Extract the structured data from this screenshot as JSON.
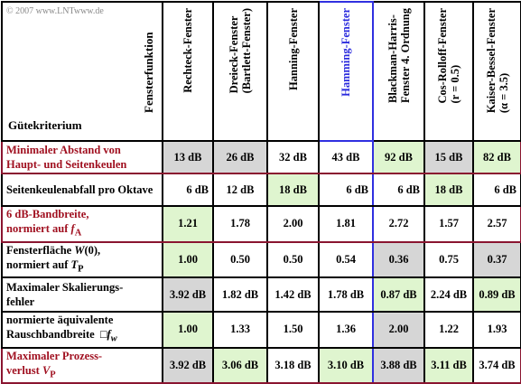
{
  "copyright": "© 2007 www.LNTwww.de",
  "row_axis_label": "Gütekriterium",
  "col_axis_label": "Fensterfunktion",
  "windows": [
    {
      "name": "Rechteck-Fenster"
    },
    {
      "name": "Dreieck-Fenster\n(Bartlett-Fenster)"
    },
    {
      "name": "Hanning-Fenster"
    },
    {
      "name": "Hamming-Fenster"
    },
    {
      "name": "Blackman-Harris-\nFenster 4. Ordnung"
    },
    {
      "name": "Cos-Rolloff-Fenster\n(r = 0.5)"
    },
    {
      "name": "Kaiser-Bessel-Fenster\n(α = 3.5)"
    }
  ],
  "rows": [
    {
      "label": "Minimaler Abstand von Haupt- und Seitenkeulen",
      "values": [
        "13 dB",
        "26 dB",
        "32 dB",
        "43 dB",
        "92 dB",
        "15 dB",
        "82 dB"
      ]
    },
    {
      "label": "Seitenkeulenabfall pro Oktave",
      "values": [
        "6 dB",
        "12 dB",
        "18 dB",
        "6 dB",
        "6 dB",
        "18 dB",
        "6 dB"
      ]
    },
    {
      "label": "6 dB-Bandbreite, normiert auf fA",
      "values": [
        "1.21",
        "1.78",
        "2.00",
        "1.81",
        "2.72",
        "1.57",
        "2.57"
      ]
    },
    {
      "label": "Fensterfläche W(0), normiert auf TP",
      "values": [
        "1.00",
        "0.50",
        "0.50",
        "0.54",
        "0.36",
        "0.75",
        "0.37"
      ]
    },
    {
      "label": "Maximaler Skalierungs-fehler",
      "values": [
        "3.92 dB",
        "1.82 dB",
        "1.42 dB",
        "1.78 dB",
        "0.87 dB",
        "2.24 dB",
        "0.89 dB"
      ]
    },
    {
      "label": "normierte äquivalente Rauschbandbreite □fw",
      "values": [
        "1.00",
        "1.33",
        "1.50",
        "1.36",
        "2.00",
        "1.22",
        "1.93"
      ]
    },
    {
      "label": "Maximaler Prozess-verlust VP",
      "values": [
        "3.92 dB",
        "3.06 dB",
        "3.18 dB",
        "3.10 dB",
        "3.88 dB",
        "3.11 dB",
        "3.74 dB"
      ]
    }
  ],
  "colors": {
    "gray_cell": "#d6d6d6",
    "green_cell": "#dff5cf",
    "highlight_border": "#3030e0",
    "red_text": "#a01020",
    "maroon_border": "#8a1530"
  }
}
